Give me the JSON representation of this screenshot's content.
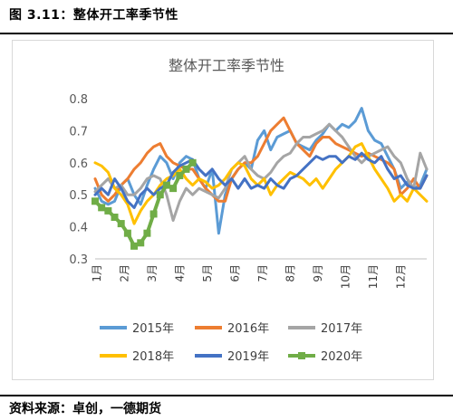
{
  "header": {
    "caption": "图 3.11：整体开工率季节性"
  },
  "footer": {
    "source": "资料来源：卓创，一德期货"
  },
  "chart_data": {
    "type": "line",
    "title": "整体开工率季节性",
    "xlabel": "",
    "ylabel": "",
    "ylim": [
      0.3,
      0.8
    ],
    "yticks": [
      "0.3",
      "0.4",
      "0.5",
      "0.6",
      "0.7",
      "0.8"
    ],
    "x_ticks": [
      "1月",
      "2月",
      "3月",
      "4月",
      "5月",
      "6月",
      "7月",
      "8月",
      "9月",
      "10月",
      "11月",
      "12月"
    ],
    "week_axis_length": 52,
    "legend_position": "bottom",
    "grid": false,
    "series": [
      {
        "name": "2015年",
        "color": "#5b9bd5",
        "marker": "none",
        "values": [
          0.52,
          0.48,
          0.47,
          0.48,
          0.53,
          0.55,
          0.5,
          0.47,
          0.53,
          0.58,
          0.62,
          0.6,
          0.55,
          0.6,
          0.62,
          0.61,
          0.55,
          0.52,
          0.58,
          0.38,
          0.5,
          0.55,
          0.58,
          0.6,
          0.58,
          0.67,
          0.7,
          0.64,
          0.68,
          0.69,
          0.7,
          0.66,
          0.65,
          0.64,
          0.67,
          0.69,
          0.72,
          0.7,
          0.72,
          0.71,
          0.73,
          0.77,
          0.7,
          0.67,
          0.66,
          0.62,
          0.58,
          0.52,
          0.54,
          0.52,
          0.53,
          0.58
        ]
      },
      {
        "name": "2016年",
        "color": "#ed7d31",
        "marker": "none",
        "values": [
          0.55,
          0.5,
          0.48,
          0.5,
          0.53,
          0.55,
          0.58,
          0.6,
          0.63,
          0.65,
          0.66,
          0.62,
          0.6,
          0.59,
          0.58,
          0.58,
          0.55,
          0.52,
          0.5,
          0.48,
          0.48,
          0.55,
          0.58,
          0.6,
          0.6,
          0.62,
          0.66,
          0.7,
          0.72,
          0.74,
          0.7,
          0.66,
          0.64,
          0.62,
          0.66,
          0.68,
          0.68,
          0.66,
          0.65,
          0.64,
          0.63,
          0.62,
          0.63,
          0.62,
          0.61,
          0.6,
          0.58,
          0.5,
          0.52,
          0.55,
          0.52,
          0.56
        ]
      },
      {
        "name": "2017年",
        "color": "#a5a5a5",
        "marker": "none",
        "values": [
          0.51,
          0.53,
          0.55,
          0.52,
          0.53,
          0.5,
          0.5,
          0.52,
          0.55,
          0.56,
          0.55,
          0.5,
          0.42,
          0.48,
          0.52,
          0.5,
          0.52,
          0.51,
          0.5,
          0.49,
          0.52,
          0.58,
          0.6,
          0.62,
          0.58,
          0.56,
          0.55,
          0.57,
          0.6,
          0.62,
          0.63,
          0.66,
          0.68,
          0.68,
          0.69,
          0.7,
          0.72,
          0.7,
          0.68,
          0.65,
          0.62,
          0.6,
          0.62,
          0.63,
          0.64,
          0.65,
          0.62,
          0.6,
          0.55,
          0.52,
          0.63,
          0.58
        ]
      },
      {
        "name": "2018年",
        "color": "#ffc000",
        "marker": "none",
        "values": [
          0.6,
          0.59,
          0.57,
          0.52,
          0.5,
          0.47,
          0.41,
          0.45,
          0.48,
          0.5,
          0.53,
          0.55,
          0.56,
          0.58,
          0.55,
          0.53,
          0.55,
          0.54,
          0.52,
          0.53,
          0.55,
          0.58,
          0.6,
          0.59,
          0.55,
          0.53,
          0.55,
          0.5,
          0.53,
          0.55,
          0.57,
          0.56,
          0.55,
          0.53,
          0.55,
          0.52,
          0.55,
          0.58,
          0.6,
          0.62,
          0.65,
          0.66,
          0.62,
          0.58,
          0.55,
          0.52,
          0.48,
          0.5,
          0.48,
          0.52,
          0.5,
          0.48
        ]
      },
      {
        "name": "2019年",
        "color": "#4472c4",
        "marker": "none",
        "values": [
          0.5,
          0.52,
          0.5,
          0.55,
          0.52,
          0.48,
          0.46,
          0.5,
          0.52,
          0.5,
          0.52,
          0.53,
          0.57,
          0.59,
          0.6,
          0.61,
          0.58,
          0.56,
          0.58,
          0.55,
          0.53,
          0.55,
          0.52,
          0.55,
          0.52,
          0.53,
          0.52,
          0.55,
          0.53,
          0.52,
          0.55,
          0.56,
          0.58,
          0.6,
          0.62,
          0.61,
          0.62,
          0.62,
          0.6,
          0.62,
          0.61,
          0.63,
          0.61,
          0.6,
          0.62,
          0.58,
          0.55,
          0.56,
          0.53,
          0.52,
          0.52,
          0.56
        ]
      },
      {
        "name": "2020年",
        "color": "#70ad47",
        "marker": "square",
        "values": [
          0.48,
          0.46,
          0.45,
          0.43,
          0.41,
          0.38,
          0.34,
          0.35,
          0.38,
          0.44,
          0.5,
          0.53,
          0.52,
          0.56,
          0.58,
          0.6,
          null,
          null,
          null,
          null,
          null,
          null,
          null,
          null,
          null,
          null,
          null,
          null,
          null,
          null,
          null,
          null,
          null,
          null,
          null,
          null,
          null,
          null,
          null,
          null,
          null,
          null,
          null,
          null,
          null,
          null,
          null,
          null,
          null,
          null,
          null,
          null
        ]
      }
    ]
  }
}
